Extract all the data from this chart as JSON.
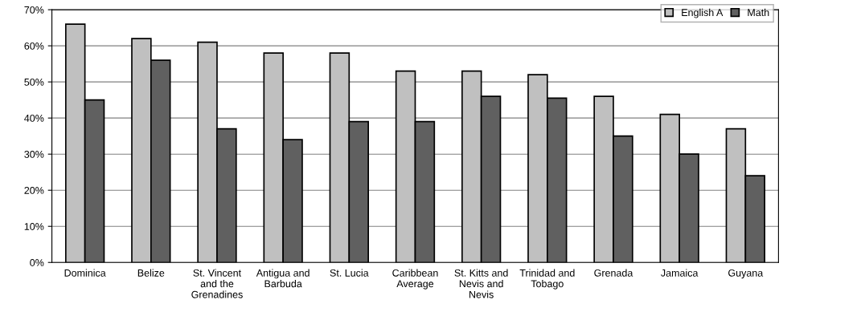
{
  "chart_data": {
    "type": "bar",
    "categories": [
      "Dominica",
      "Belize",
      "St. Vincent\nand the\nGrenadines",
      "Antigua and\nBarbuda",
      "St. Lucia",
      "Caribbean\nAverage",
      "St. Kitts and\nNevis and\nNevis",
      "Trinidad and\nTobago",
      "Grenada",
      "Jamaica",
      "Guyana"
    ],
    "series": [
      {
        "name": "English A",
        "color": "#c0c0c0",
        "values": [
          66,
          62,
          61,
          58,
          58,
          53,
          53,
          52,
          46,
          41,
          37
        ]
      },
      {
        "name": "Math",
        "color": "#606060",
        "values": [
          45,
          56,
          37,
          34,
          39,
          39,
          46,
          45.5,
          35,
          30,
          24
        ]
      }
    ],
    "ylim": [
      0,
      70
    ],
    "yticks": [
      {
        "value": 0,
        "label": "0%"
      },
      {
        "value": 10,
        "label": "10%"
      },
      {
        "value": 20,
        "label": "20%"
      },
      {
        "value": 30,
        "label": "30%"
      },
      {
        "value": 40,
        "label": "40%"
      },
      {
        "value": 50,
        "label": "50%"
      },
      {
        "value": 60,
        "label": "60%"
      },
      {
        "value": 70,
        "label": "70%"
      }
    ],
    "grid": "y",
    "legend": "top right"
  }
}
